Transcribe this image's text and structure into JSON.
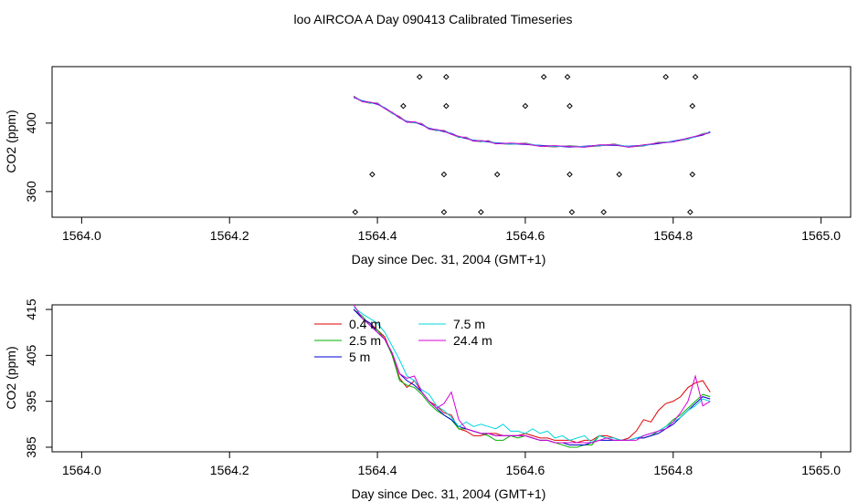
{
  "figure": {
    "title": "loo AIRCOA A  Day 090413  Calibrated Timeseries"
  },
  "chart_data": [
    {
      "type": "scatter",
      "title": "",
      "xlabel": "Day since Dec. 31, 2004 (GMT+1)",
      "ylabel": "CO2 (ppm)",
      "xlim": [
        1563.96,
        1565.04
      ],
      "ylim": [
        345,
        433
      ],
      "x_ticks": [
        1564.0,
        1564.2,
        1564.4,
        1564.6,
        1564.8,
        1565.0
      ],
      "x_tick_labels": [
        "1564.0",
        "1564.2",
        "1564.4",
        "1564.6",
        "1564.8",
        "1565.0"
      ],
      "y_ticks": [
        360,
        400
      ],
      "y_tick_labels": [
        "360",
        "400"
      ],
      "grid": false,
      "line": {
        "x": [
          1564.368,
          1564.38,
          1564.39,
          1564.4,
          1564.41,
          1564.42,
          1564.43,
          1564.44,
          1564.45,
          1564.46,
          1564.47,
          1564.48,
          1564.49,
          1564.5,
          1564.51,
          1564.52,
          1564.53,
          1564.54,
          1564.55,
          1564.56,
          1564.58,
          1564.6,
          1564.62,
          1564.64,
          1564.66,
          1564.68,
          1564.7,
          1564.72,
          1564.74,
          1564.76,
          1564.78,
          1564.8,
          1564.82,
          1564.84,
          1564.85
        ],
        "y": [
          415,
          413,
          412,
          411,
          409,
          406,
          403,
          401,
          400.5,
          399,
          397,
          396,
          395,
          394,
          392,
          391,
          390,
          389.5,
          389,
          388.5,
          388,
          387.5,
          387,
          386.5,
          386,
          386.5,
          387,
          387,
          386.5,
          387,
          388,
          389.5,
          391,
          393,
          395
        ],
        "series_colors": [
          "#e00000",
          "#00b000",
          "#0000d0",
          "#00d8e0",
          "#d800d8"
        ]
      },
      "markers": {
        "x": [
          1564.37,
          1564.393,
          1564.435,
          1564.457,
          1564.49,
          1564.49,
          1564.493,
          1564.493,
          1564.54,
          1564.562,
          1564.6,
          1564.625,
          1564.657,
          1564.66,
          1564.66,
          1564.663,
          1564.706,
          1564.727,
          1564.79,
          1564.823,
          1564.826,
          1564.826,
          1564.83
        ],
        "y": [
          348,
          370,
          410,
          427,
          370,
          348,
          410,
          427,
          348,
          370,
          410,
          427,
          427,
          410,
          370,
          348,
          348,
          370,
          427,
          348,
          370,
          410,
          427
        ]
      }
    },
    {
      "type": "line",
      "title": "",
      "xlabel": "Day since Dec. 31, 2004 (GMT+1)",
      "ylabel": "CO2 (ppm)",
      "xlim": [
        1563.96,
        1565.04
      ],
      "ylim": [
        384,
        416
      ],
      "x_ticks": [
        1564.0,
        1564.2,
        1564.4,
        1564.6,
        1564.8,
        1565.0
      ],
      "x_tick_labels": [
        "1564.0",
        "1564.2",
        "1564.4",
        "1564.6",
        "1564.8",
        "1565.0"
      ],
      "y_ticks": [
        385,
        395,
        405,
        415
      ],
      "y_tick_labels": [
        "385",
        "395",
        "405",
        "415"
      ],
      "grid": false,
      "legend_position": "top-center",
      "x": [
        1564.368,
        1564.38,
        1564.39,
        1564.4,
        1564.41,
        1564.42,
        1564.43,
        1564.44,
        1564.45,
        1564.46,
        1564.47,
        1564.48,
        1564.49,
        1564.5,
        1564.51,
        1564.52,
        1564.53,
        1564.54,
        1564.55,
        1564.56,
        1564.57,
        1564.58,
        1564.59,
        1564.6,
        1564.61,
        1564.62,
        1564.63,
        1564.64,
        1564.65,
        1564.66,
        1564.67,
        1564.68,
        1564.69,
        1564.7,
        1564.71,
        1564.72,
        1564.73,
        1564.74,
        1564.75,
        1564.76,
        1564.77,
        1564.78,
        1564.79,
        1564.8,
        1564.81,
        1564.82,
        1564.83,
        1564.84,
        1564.85
      ],
      "series": [
        {
          "name": "0.4 m",
          "color": "#e00000",
          "values": [
            415,
            413,
            412,
            410.5,
            409,
            405,
            400,
            398,
            399.5,
            397,
            395,
            394,
            392.5,
            392,
            389,
            388.5,
            387.5,
            387.5,
            388,
            388,
            387.5,
            387.5,
            387.5,
            388,
            387.5,
            387,
            387,
            386.5,
            386.5,
            386.5,
            386,
            386.5,
            386.5,
            387.5,
            387.5,
            387,
            386.5,
            387,
            388.5,
            391,
            390.5,
            393,
            394.5,
            395,
            396,
            398,
            399,
            399.5,
            397
          ]
        },
        {
          "name": "2.5 m",
          "color": "#00b000",
          "values": [
            415,
            413.5,
            411.5,
            410.5,
            408.5,
            405,
            399.5,
            398.5,
            398,
            396.5,
            394.5,
            393,
            392,
            391,
            389,
            389,
            388.5,
            388,
            387.5,
            386.5,
            386.5,
            387.5,
            387,
            387.5,
            387,
            386.5,
            386.5,
            386,
            385.5,
            385,
            385,
            385.5,
            385.5,
            387.5,
            387,
            386.5,
            386.5,
            386.5,
            387,
            387,
            387.5,
            388.5,
            389.5,
            391,
            392,
            393.5,
            395,
            396.5,
            396
          ]
        },
        {
          "name": "5 m",
          "color": "#0000d0",
          "values": [
            415,
            413,
            412,
            410,
            408.5,
            405.5,
            401,
            399.5,
            398.5,
            397,
            395,
            393.5,
            392,
            391,
            389.5,
            389,
            388.5,
            388,
            388,
            387.5,
            387.5,
            387.5,
            387.5,
            387.5,
            387,
            386.5,
            386.5,
            386,
            386,
            385.5,
            385.5,
            385.5,
            386,
            386.5,
            386.5,
            386.5,
            386.5,
            386.5,
            387,
            387,
            387.5,
            388,
            389,
            390,
            391.5,
            393,
            394.5,
            396,
            395.5
          ]
        },
        {
          "name": "7.5 m",
          "color": "#00d8e0",
          "values": [
            415.5,
            414,
            413,
            412,
            410,
            407,
            404,
            400.5,
            399.5,
            397.5,
            396.5,
            394,
            393,
            391.5,
            389.5,
            390.5,
            389.5,
            390,
            389.5,
            389,
            390,
            388.5,
            388.5,
            388,
            389,
            388,
            388.5,
            387,
            387.5,
            386.5,
            387,
            387.5,
            386,
            387.5,
            387,
            387,
            386.5,
            386.5,
            387,
            387.5,
            388,
            388.5,
            389.5,
            390.5,
            391.5,
            393,
            394,
            395.5,
            395
          ]
        },
        {
          "name": "24.4 m",
          "color": "#d800d8",
          "values": [
            416,
            413,
            411.5,
            410,
            408.5,
            405.5,
            401,
            400,
            400.5,
            397,
            395,
            393.5,
            394.5,
            397,
            391,
            389,
            388.5,
            388,
            388,
            387.5,
            387.5,
            387.5,
            387.5,
            387.5,
            387,
            386.5,
            386.5,
            386,
            386,
            386,
            386,
            386,
            386,
            386.5,
            387,
            386.5,
            386.5,
            386.5,
            386.5,
            387.5,
            388,
            388.5,
            389,
            390.5,
            392.5,
            395,
            400.5,
            394,
            395
          ]
        }
      ]
    }
  ]
}
